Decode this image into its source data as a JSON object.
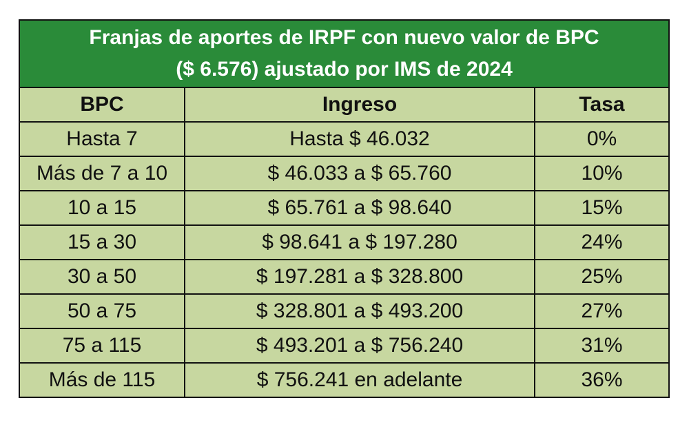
{
  "title_line1": "Franjas de aportes de IRPF con nuevo valor de BPC",
  "title_line2": "($ 6.576) ajustado por IMS de 2024",
  "headers": [
    "BPC",
    "Ingreso",
    "Tasa"
  ],
  "rows": [
    [
      "Hasta 7",
      "Hasta $ 46.032",
      "0%"
    ],
    [
      "Más de 7 a 10",
      "$ 46.033 a $ 65.760",
      "10%"
    ],
    [
      "10 a 15",
      "$ 65.761 a $ 98.640",
      "15%"
    ],
    [
      "15 a 30",
      "$ 98.641 a $ 197.280",
      "24%"
    ],
    [
      "30 a 50",
      "$ 197.281 a $ 328.800",
      "25%"
    ],
    [
      "50 a 75",
      "$ 328.801 a  $ 493.200",
      "27%"
    ],
    [
      "75 a 115",
      "$ 493.201 a $ 756.240",
      "31%"
    ],
    [
      "Más de 115",
      "$ 756.241 en adelante",
      "36%"
    ]
  ],
  "colors": {
    "title_bg": "#2a8b39",
    "cell_bg": "#c7d7a0",
    "border": "#111111"
  }
}
